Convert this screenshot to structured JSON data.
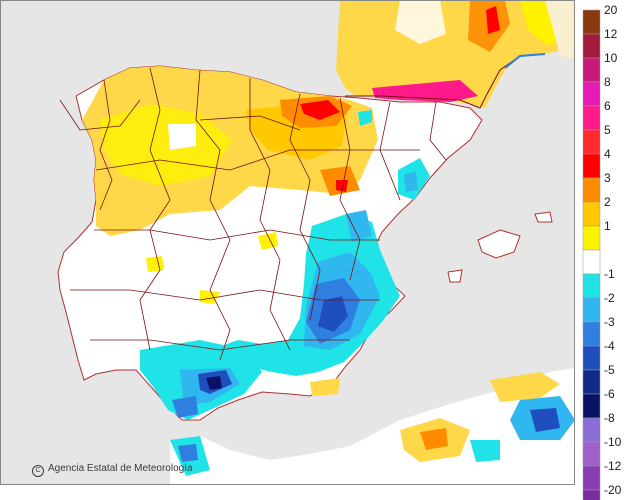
{
  "credit": {
    "icon": "copyright-icon",
    "text": "Agencia Estatal de Meteorología"
  },
  "legend": {
    "positive": [
      {
        "label": "20",
        "color": "#8b3a0f"
      },
      {
        "label": "12",
        "color": "#a11c3c"
      },
      {
        "label": "10",
        "color": "#c8197a"
      },
      {
        "label": "8",
        "color": "#e81ab5"
      },
      {
        "label": "6",
        "color": "#ff1a8c"
      },
      {
        "label": "5",
        "color": "#ff2a2a"
      },
      {
        "label": "4",
        "color": "#ff0000"
      },
      {
        "label": "3",
        "color": "#ff8c00"
      },
      {
        "label": "2",
        "color": "#ffc800"
      },
      {
        "label": "1",
        "color": "#fff200"
      }
    ],
    "zero_color": "#ffffff",
    "negative": [
      {
        "label": "-1",
        "color": "#1fe3e6"
      },
      {
        "label": "-2",
        "color": "#31b7ef"
      },
      {
        "label": "-3",
        "color": "#2f7fe0"
      },
      {
        "label": "-4",
        "color": "#1f4fbf"
      },
      {
        "label": "-5",
        "color": "#102a88"
      },
      {
        "label": "-6",
        "color": "#0a1266"
      },
      {
        "label": "-8",
        "color": "#8c6cd6"
      },
      {
        "label": "-10",
        "color": "#9d61c8"
      },
      {
        "label": "-12",
        "color": "#8a3db3"
      },
      {
        "label": "-20",
        "color": "#7a2d9e"
      }
    ]
  },
  "colors": {
    "sea": "#e6e6e6",
    "land_outside": "#f2f2f2",
    "border": "#7a1010",
    "coast": "#b03030"
  }
}
